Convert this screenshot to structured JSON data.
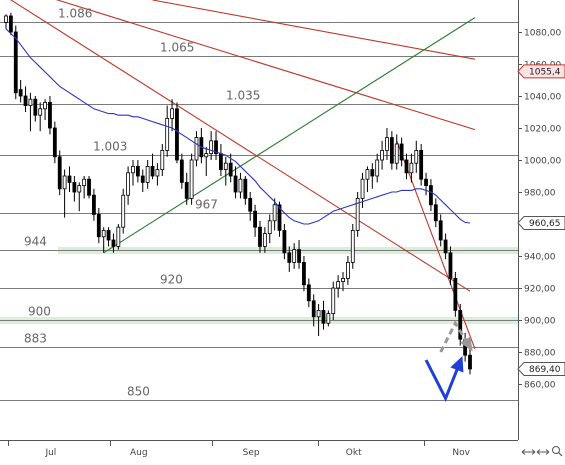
{
  "chart_data": {
    "type": "candlestick",
    "title": "",
    "xlabel": "",
    "ylabel": "",
    "ylim": [
      825,
      1100
    ],
    "y_ticks": [
      1080,
      1060,
      1040,
      1020,
      1000,
      980,
      960,
      940,
      920,
      900,
      880,
      860
    ],
    "y_tick_labels": [
      "1080,00",
      "1060,00",
      "1040,00",
      "1020,00",
      "1000,00",
      "980,00",
      "960,00",
      "940,00",
      "920,00",
      "900,00",
      "880,00",
      "860,00"
    ],
    "month_labels": [
      "Jul",
      "Aug",
      "Sep",
      "Okt",
      "Nov"
    ],
    "price_badges": [
      {
        "value": 1055.4,
        "label": "1055,4",
        "style": "red"
      },
      {
        "value": 960.65,
        "label": "960,65",
        "style": "plain"
      },
      {
        "value": 869.4,
        "label": "869,40",
        "style": "plain"
      }
    ],
    "levels": [
      {
        "value": 1086,
        "label": "1.086"
      },
      {
        "value": 1065,
        "label": "1.065"
      },
      {
        "value": 1035,
        "label": "1.035"
      },
      {
        "value": 1003,
        "label": "1.003"
      },
      {
        "value": 967,
        "label": "967"
      },
      {
        "value": 944,
        "label": "944",
        "zone": true
      },
      {
        "value": 920,
        "label": "920"
      },
      {
        "value": 900,
        "label": "900",
        "zone": true
      },
      {
        "value": 883,
        "label": "883"
      },
      {
        "value": 850,
        "label": "850"
      }
    ],
    "candles": [
      [
        1086,
        1091,
        1082,
        1090
      ],
      [
        1090,
        1092,
        1078,
        1080
      ],
      [
        1080,
        1084,
        1038,
        1042
      ],
      [
        1044,
        1050,
        1036,
        1040
      ],
      [
        1040,
        1046,
        1030,
        1034
      ],
      [
        1034,
        1042,
        1018,
        1038
      ],
      [
        1038,
        1040,
        1024,
        1028
      ],
      [
        1028,
        1036,
        1018,
        1032
      ],
      [
        1032,
        1038,
        1025,
        1036
      ],
      [
        1036,
        1040,
        1016,
        1020
      ],
      [
        1020,
        1024,
        998,
        1002
      ],
      [
        1002,
        1006,
        978,
        982
      ],
      [
        982,
        994,
        964,
        990
      ],
      [
        990,
        996,
        980,
        986
      ],
      [
        986,
        990,
        974,
        980
      ],
      [
        980,
        986,
        968,
        984
      ],
      [
        984,
        990,
        976,
        988
      ],
      [
        988,
        990,
        976,
        978
      ],
      [
        978,
        982,
        962,
        966
      ],
      [
        966,
        970,
        948,
        952
      ],
      [
        952,
        958,
        942,
        956
      ],
      [
        956,
        958,
        946,
        950
      ],
      [
        950,
        954,
        942,
        946
      ],
      [
        946,
        960,
        944,
        958
      ],
      [
        958,
        982,
        954,
        978
      ],
      [
        978,
        996,
        972,
        992
      ],
      [
        992,
        1000,
        984,
        996
      ],
      [
        996,
        1000,
        986,
        990
      ],
      [
        990,
        994,
        980,
        986
      ],
      [
        986,
        1000,
        982,
        996
      ],
      [
        996,
        1004,
        988,
        990
      ],
      [
        990,
        998,
        984,
        994
      ],
      [
        994,
        1010,
        990,
        1006
      ],
      [
        1006,
        1034,
        1002,
        1026
      ],
      [
        1026,
        1038,
        1018,
        1032
      ],
      [
        1032,
        1036,
        998,
        1000
      ],
      [
        1000,
        1004,
        982,
        986
      ],
      [
        986,
        992,
        972,
        976
      ],
      [
        976,
        1004,
        972,
        1000
      ],
      [
        1000,
        1018,
        996,
        1014
      ],
      [
        1014,
        1020,
        998,
        1002
      ],
      [
        1002,
        1008,
        990,
        1004
      ],
      [
        1004,
        1018,
        1000,
        1012
      ],
      [
        1012,
        1018,
        1000,
        1004
      ],
      [
        1004,
        1010,
        990,
        994
      ],
      [
        994,
        1002,
        984,
        998
      ],
      [
        998,
        1004,
        986,
        990
      ],
      [
        990,
        996,
        976,
        980
      ],
      [
        980,
        992,
        976,
        988
      ],
      [
        988,
        990,
        972,
        976
      ],
      [
        976,
        980,
        962,
        968
      ],
      [
        968,
        972,
        952,
        958
      ],
      [
        958,
        962,
        942,
        946
      ],
      [
        946,
        958,
        942,
        954
      ],
      [
        954,
        966,
        948,
        962
      ],
      [
        962,
        976,
        956,
        972
      ],
      [
        972,
        974,
        952,
        956
      ],
      [
        956,
        960,
        938,
        942
      ],
      [
        942,
        946,
        930,
        936
      ],
      [
        936,
        948,
        932,
        944
      ],
      [
        944,
        950,
        932,
        936
      ],
      [
        936,
        940,
        918,
        922
      ],
      [
        922,
        926,
        908,
        912
      ],
      [
        912,
        916,
        896,
        902
      ],
      [
        902,
        910,
        890,
        906
      ],
      [
        906,
        912,
        894,
        898
      ],
      [
        898,
        906,
        896,
        904
      ],
      [
        904,
        924,
        900,
        920
      ],
      [
        920,
        928,
        914,
        924
      ],
      [
        924,
        930,
        918,
        926
      ],
      [
        926,
        940,
        922,
        936
      ],
      [
        936,
        960,
        932,
        956
      ],
      [
        956,
        980,
        952,
        976
      ],
      [
        976,
        992,
        970,
        988
      ],
      [
        988,
        996,
        980,
        994
      ],
      [
        994,
        998,
        982,
        990
      ],
      [
        990,
        1004,
        986,
        1000
      ],
      [
        1000,
        1012,
        994,
        1006
      ],
      [
        1006,
        1020,
        1000,
        1014
      ],
      [
        1014,
        1018,
        994,
        998
      ],
      [
        998,
        1016,
        994,
        1010
      ],
      [
        1010,
        1014,
        996,
        1000
      ],
      [
        1000,
        1004,
        988,
        992
      ],
      [
        992,
        1004,
        986,
        998
      ],
      [
        998,
        1012,
        992,
        1006
      ],
      [
        1006,
        1010,
        984,
        988
      ],
      [
        988,
        992,
        978,
        984
      ],
      [
        984,
        988,
        968,
        972
      ],
      [
        972,
        976,
        958,
        962
      ],
      [
        962,
        966,
        946,
        950
      ],
      [
        950,
        954,
        938,
        942
      ],
      [
        942,
        946,
        922,
        926
      ],
      [
        926,
        930,
        902,
        906
      ],
      [
        906,
        910,
        884,
        888
      ],
      [
        888,
        892,
        874,
        878
      ],
      [
        878,
        884,
        866,
        869.4
      ]
    ],
    "moving_average": [
      1082,
      1079,
      1076,
      1072,
      1068,
      1064,
      1061,
      1058,
      1055,
      1052,
      1049,
      1046,
      1044,
      1042,
      1040,
      1038,
      1036,
      1034,
      1032,
      1031,
      1030,
      1029,
      1029,
      1028,
      1028,
      1028,
      1027,
      1027,
      1026,
      1025,
      1024,
      1023,
      1022,
      1021,
      1020,
      1018,
      1016,
      1014,
      1012,
      1010,
      1008,
      1007,
      1006,
      1005,
      1004,
      1003,
      1001,
      999,
      996,
      993,
      990,
      987,
      983,
      980,
      977,
      974,
      970,
      967,
      964,
      962,
      961,
      960,
      960,
      961,
      962,
      964,
      966,
      968,
      969,
      970,
      971,
      972,
      973,
      974,
      975,
      976,
      977,
      978,
      979,
      980,
      980,
      981,
      981,
      981,
      982,
      982,
      981,
      980,
      978,
      975,
      972,
      969,
      966,
      963,
      961,
      960.65
    ],
    "trendlines": [
      {
        "color": "#c0392b",
        "points": [
          [
            0,
            1110
          ],
          [
            96,
            1019
          ]
        ]
      },
      {
        "color": "#c0392b",
        "points": [
          [
            30,
            1100
          ],
          [
            96,
            1063
          ]
        ]
      },
      {
        "color": "#c0392b",
        "points": [
          [
            0,
            1102
          ],
          [
            95,
            918
          ]
        ]
      },
      {
        "color": "#c0392b",
        "points": [
          [
            80,
            1012
          ],
          [
            96,
            882
          ]
        ]
      },
      {
        "color": "#2e7d32",
        "points": [
          [
            20,
            942
          ],
          [
            96,
            1089
          ]
        ]
      }
    ],
    "projection_dashed": [
      [
        89,
        880
      ],
      [
        92,
        898
      ],
      [
        95,
        883
      ]
    ],
    "projection_solid": [
      [
        86,
        875
      ],
      [
        90,
        851
      ],
      [
        93,
        874
      ]
    ]
  },
  "icons": {
    "scroll_left": "left-right-arrow-icon",
    "scroll_right": "left-right-arrow-icon",
    "zoom": "magnifier-icon"
  }
}
